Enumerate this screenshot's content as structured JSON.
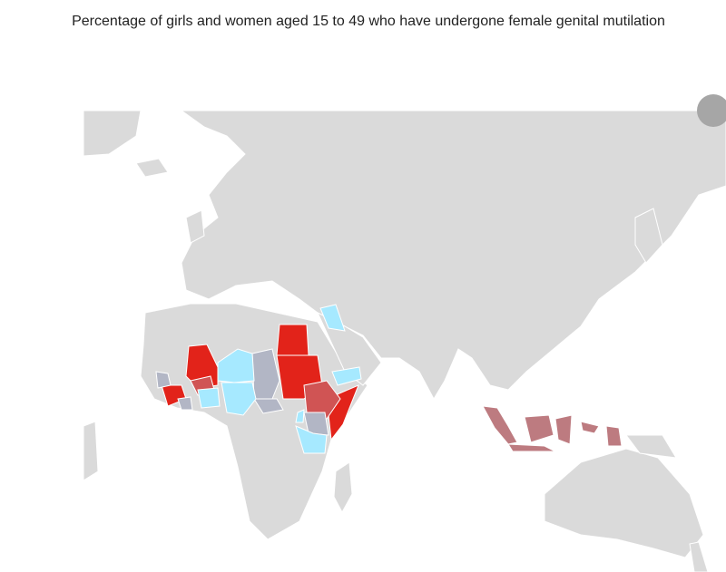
{
  "title": "Percentage of girls and women aged 15 to 49 who have undergone female genital mutilation"
}
